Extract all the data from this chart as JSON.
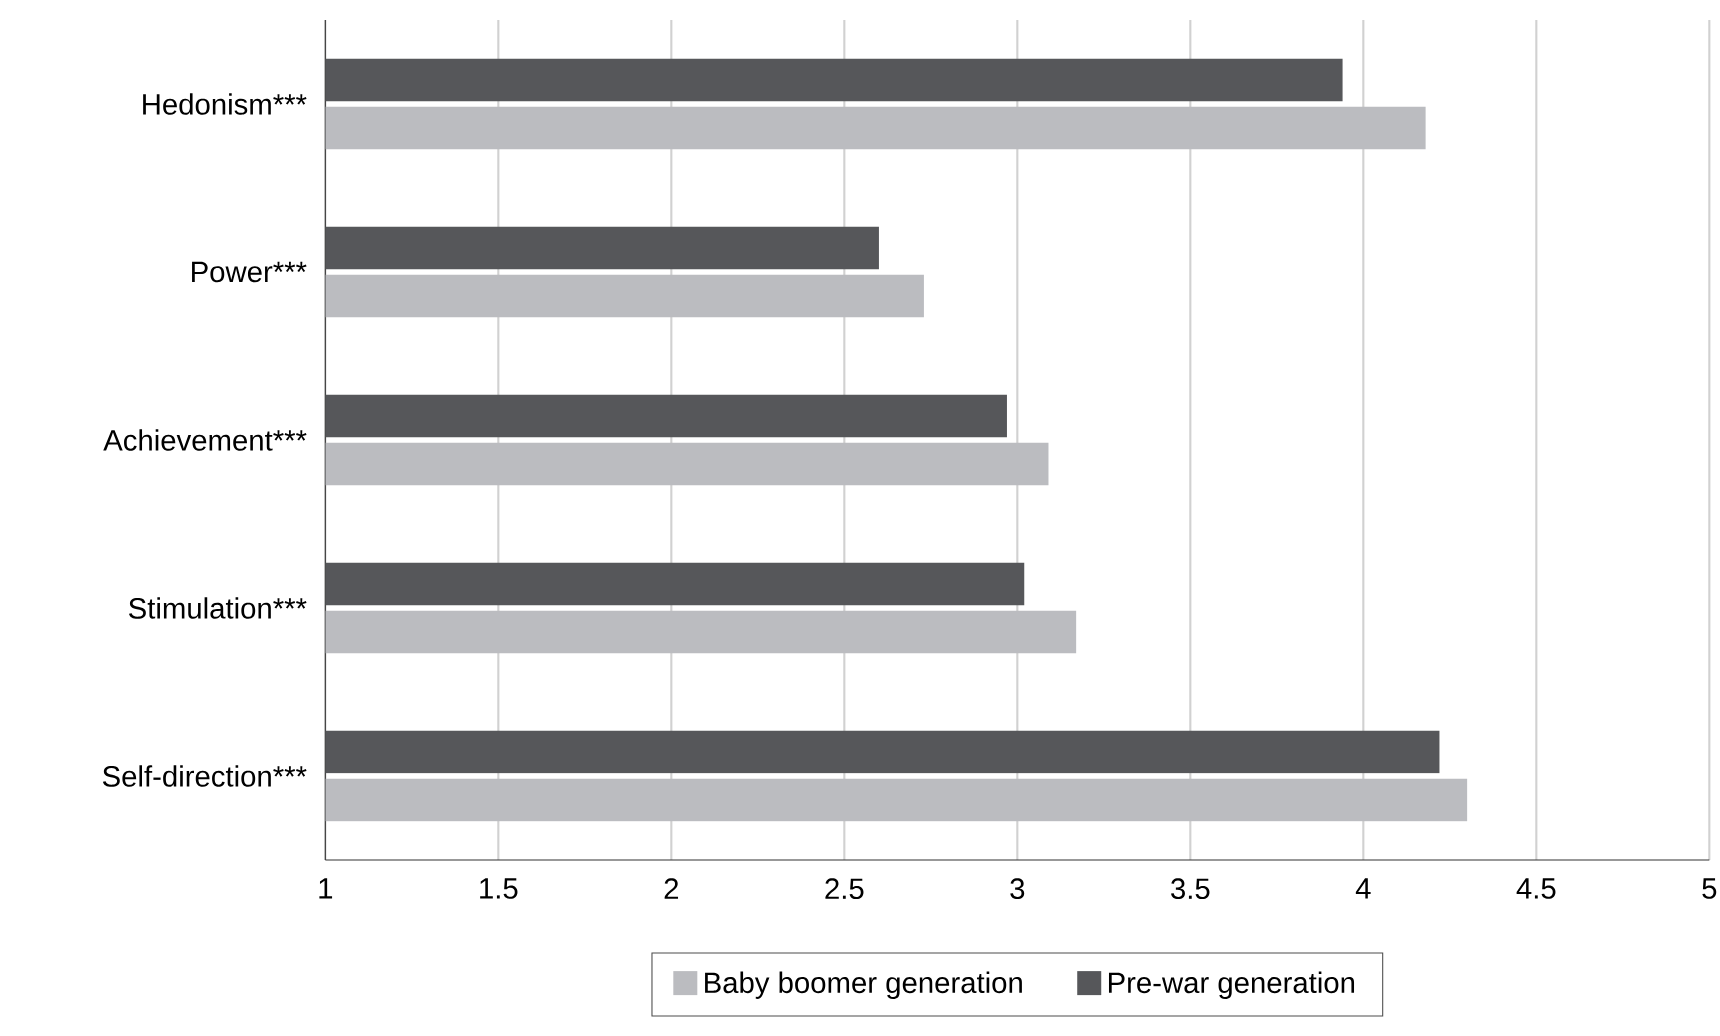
{
  "chart_data": {
    "type": "bar",
    "orientation": "horizontal",
    "categories": [
      "Hedonism***",
      "Power***",
      "Achievement***",
      "Stimulation***",
      "Self-direction***"
    ],
    "series": [
      {
        "name": "Baby boomer generation",
        "color": "#bbbcc0",
        "values": [
          4.18,
          2.73,
          3.09,
          3.17,
          4.3
        ]
      },
      {
        "name": "Pre-war generation",
        "color": "#56575a",
        "values": [
          3.94,
          2.6,
          2.97,
          3.02,
          4.22
        ]
      }
    ],
    "xlim": [
      1,
      5
    ],
    "xticks": [
      1,
      1.5,
      2,
      2.5,
      3,
      3.5,
      4,
      4.5,
      5
    ],
    "grid": "x",
    "legend": "bottom"
  }
}
